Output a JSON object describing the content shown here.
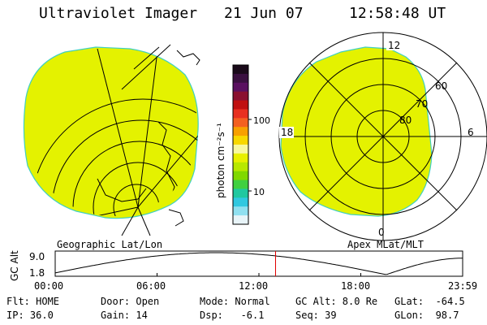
{
  "header": {
    "title": "Ultraviolet Imager",
    "date": "21 Jun 07",
    "time": "12:58:48 UT"
  },
  "colorbar": {
    "unit_label": "photon cm⁻²s⁻¹",
    "ticks": [
      "100",
      "10"
    ],
    "colors": [
      "#1a0a1a",
      "#3a1040",
      "#5a1060",
      "#8a1030",
      "#c01010",
      "#e83020",
      "#f46020",
      "#f8a000",
      "#f8d800",
      "#f8f8a0",
      "#e8f000",
      "#b8e800",
      "#80d800",
      "#40d040",
      "#20c8a0",
      "#30c8e0",
      "#90e0f0",
      "#e8f4f8"
    ]
  },
  "left_map": {
    "label": "Geographic Lat/Lon"
  },
  "right_map": {
    "label": "Apex MLat/MLT",
    "mlt_labels": {
      "top": "12",
      "left": "18",
      "right": "6",
      "bottom": "0"
    },
    "lat_labels": [
      "60",
      "70",
      "80"
    ]
  },
  "altitude_panel": {
    "ylabel": "GC Alt",
    "ytick_top": "9.0",
    "ytick_bottom": "1.8",
    "xticks": [
      "00:00",
      "06:00",
      "12:00",
      "18:00",
      "23:59"
    ],
    "current_time_hours": 12.98
  },
  "status": {
    "filter": "Flt: HOME",
    "ip": "IP: 36.0",
    "door": "Door: Open",
    "gain": "Gain: 14",
    "mode": "Mode: Normal",
    "dsp": "Dsp:   -6.1",
    "gc_alt": "GC Alt: 8.0 Re",
    "seq": "Seq: 39",
    "glat": "GLat:  -64.5",
    "glon": "GLon:  98.7"
  },
  "colors": {
    "aurora_fill": "#e4f200",
    "edge": "#40d0c0",
    "grid": "#000000",
    "marker": "#e00000"
  }
}
